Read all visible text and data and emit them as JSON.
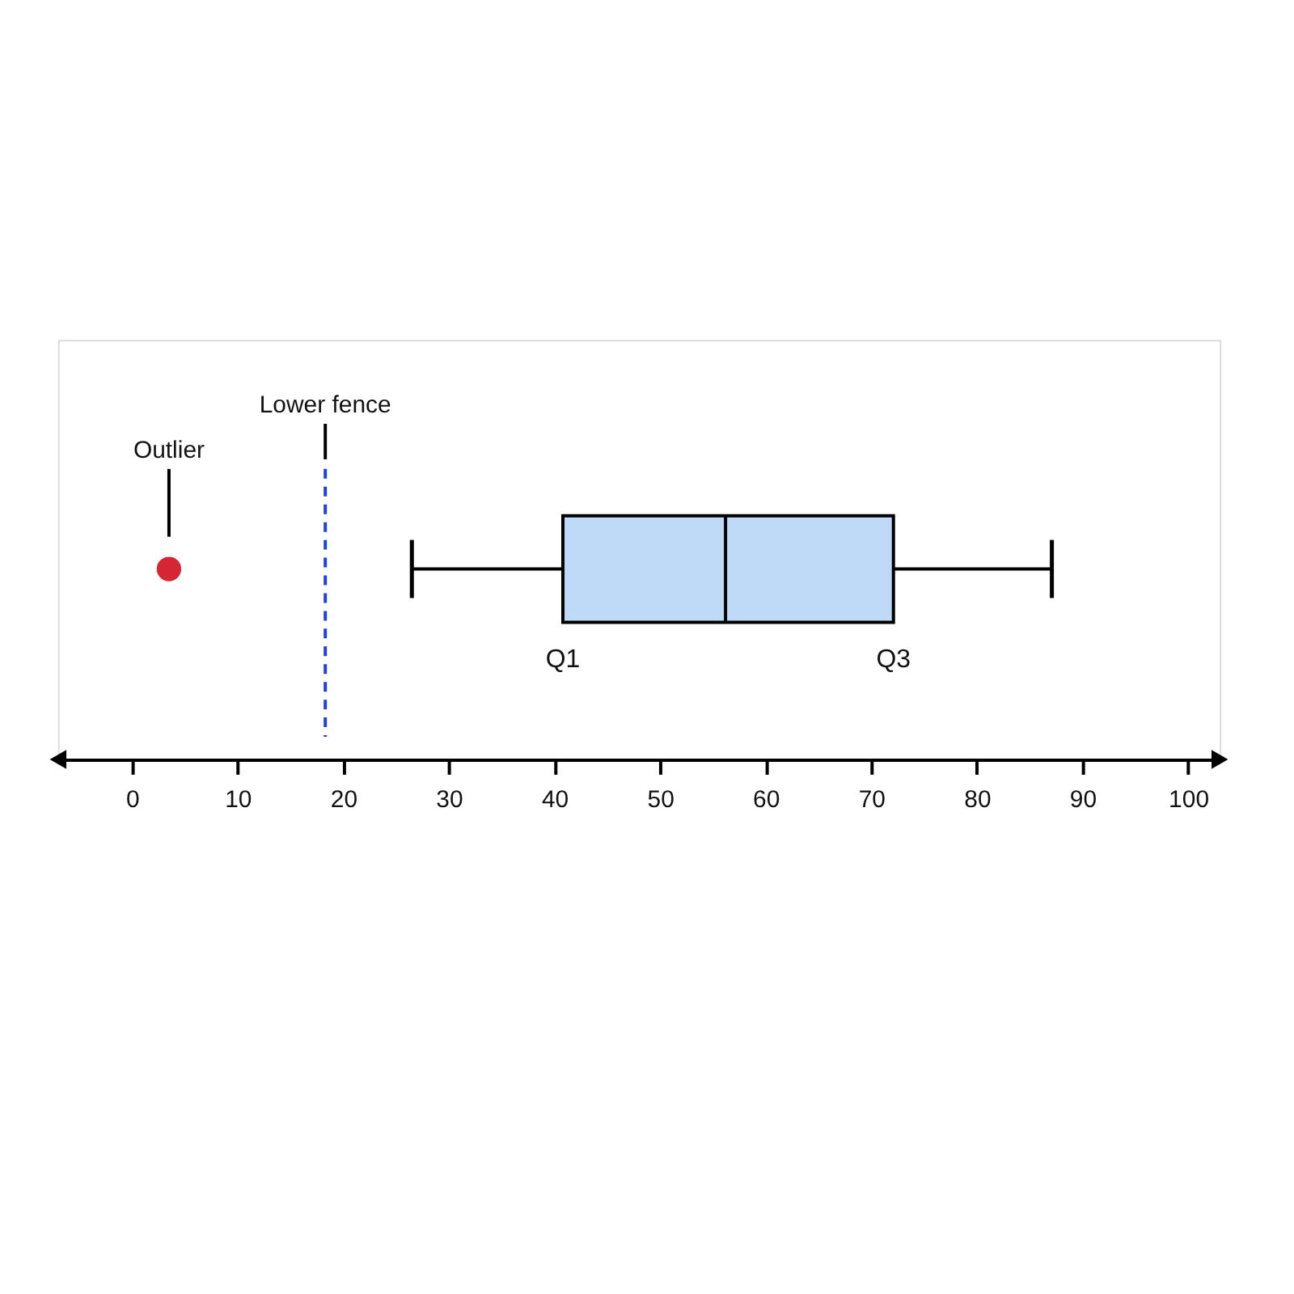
{
  "chart_data": {
    "type": "box",
    "orientation": "horizontal",
    "categories": [
      null
    ],
    "series": [
      {
        "type": "box",
        "color": "#bfdaf7",
        "boxes": [
          {
            "low": 26.5,
            "q1": 40.8,
            "median": 56.2,
            "q3": 72.1,
            "high": 87.1
          }
        ]
      },
      {
        "type": "scatter",
        "color": "#d62633",
        "values": [
          3.5
        ]
      }
    ],
    "xlim": [
      -7,
      103
    ],
    "xticks": [
      0,
      10,
      20,
      30,
      40,
      50,
      60,
      70,
      80,
      90,
      100
    ],
    "ref_lines": [
      {
        "axis": "x",
        "value": 18.3,
        "label": "Lower fence",
        "color": "#1f3fe0",
        "line_style": "dashed"
      }
    ],
    "annotations": [
      "Outlier",
      "Q1",
      "Q3"
    ],
    "grid": false
  }
}
